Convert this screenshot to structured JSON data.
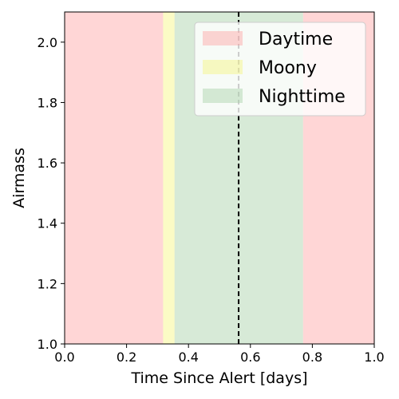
{
  "chart_data": {
    "type": "area",
    "title": "",
    "xlabel": "Time Since Alert [days]",
    "ylabel": "Airmass",
    "xlim": [
      0.0,
      1.0
    ],
    "ylim": [
      1.0,
      2.1
    ],
    "x_ticks": [
      0.0,
      0.2,
      0.4,
      0.6,
      0.8,
      1.0
    ],
    "x_tick_labels": [
      "0.0",
      "0.2",
      "0.4",
      "0.6",
      "0.8",
      "1.0"
    ],
    "y_ticks": [
      1.0,
      1.2,
      1.4,
      1.6,
      1.8,
      2.0
    ],
    "y_tick_labels": [
      "1.0",
      "1.2",
      "1.4",
      "1.6",
      "1.8",
      "2.0"
    ],
    "grid": false,
    "legend_position": "top-right",
    "series": [
      {
        "name": "Daytime",
        "color": "#ff9999",
        "opacity": 0.4,
        "intervals": [
          [
            0.0,
            0.318
          ],
          [
            0.77,
            1.0
          ]
        ]
      },
      {
        "name": "Moony",
        "color": "#f5f56e",
        "opacity": 0.4,
        "intervals": [
          [
            0.318,
            0.355
          ]
        ]
      },
      {
        "name": "Nighttime",
        "color": "#a6d1a6",
        "opacity": 0.45,
        "intervals": [
          [
            0.355,
            0.77
          ]
        ]
      }
    ],
    "vlines": [
      {
        "x": 0.562,
        "style": "dashed",
        "color": "#000000"
      }
    ]
  }
}
